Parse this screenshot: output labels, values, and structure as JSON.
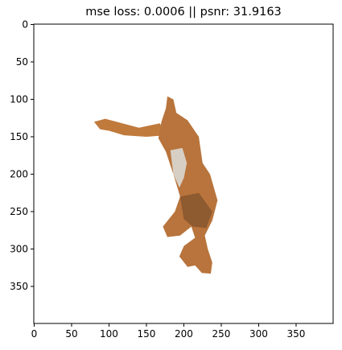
{
  "chart_data": {
    "type": "image",
    "title": "mse loss: 0.0006 || psnr: 31.9163",
    "xlim": [
      -0.5,
      399.5
    ],
    "ylim": [
      399.5,
      -0.5
    ],
    "xticks": [
      0,
      50,
      100,
      150,
      200,
      250,
      300,
      350
    ],
    "yticks": [
      0,
      50,
      100,
      150,
      200,
      250,
      300,
      350
    ]
  }
}
